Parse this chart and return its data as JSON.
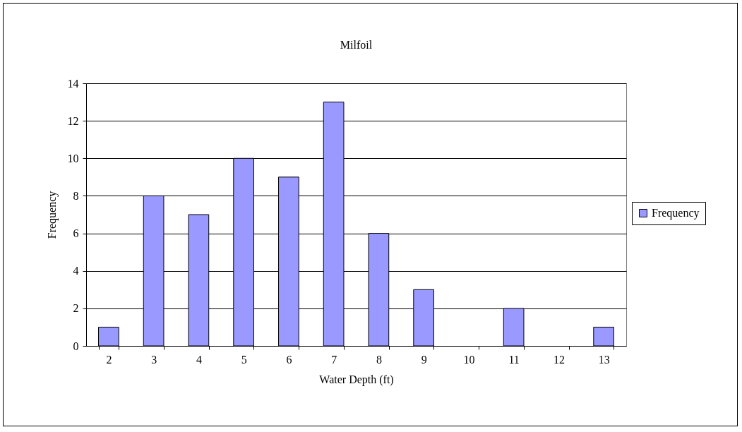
{
  "chart_data": {
    "type": "bar",
    "title": "Milfoil",
    "xlabel": "Water Depth (ft)",
    "ylabel": "Frequency",
    "categories": [
      "2",
      "3",
      "4",
      "5",
      "6",
      "7",
      "8",
      "9",
      "10",
      "11",
      "12",
      "13"
    ],
    "series": [
      {
        "name": "Frequency",
        "color": "#9999ff",
        "values": [
          1,
          8,
          7,
          10,
          9,
          13,
          6,
          3,
          0,
          2,
          0,
          1
        ]
      }
    ],
    "ylim": [
      0,
      14
    ],
    "yticks": [
      0,
      2,
      4,
      6,
      8,
      10,
      12,
      14
    ],
    "grid": "y",
    "legend": "right"
  }
}
